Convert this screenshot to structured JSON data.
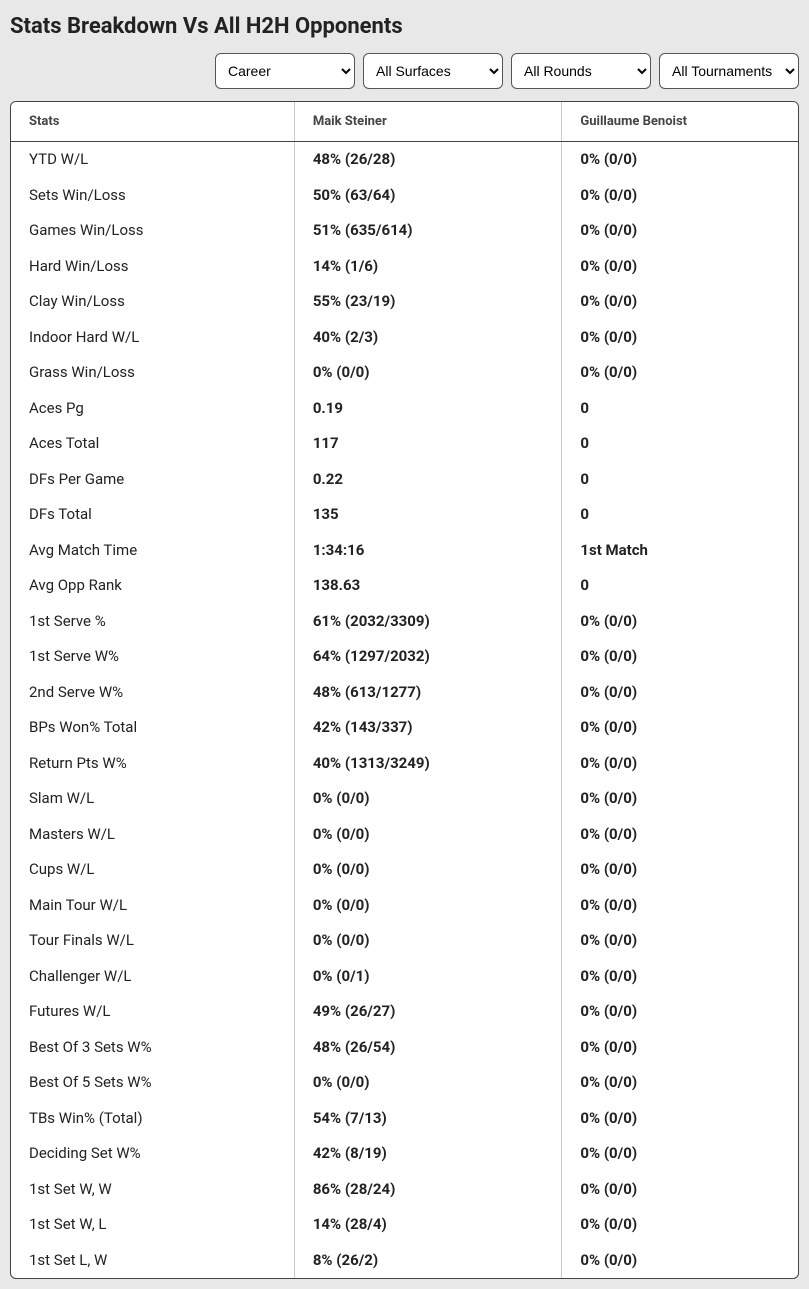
{
  "title": "Stats Breakdown Vs All H2H Opponents",
  "filters": {
    "period": {
      "selected": "Career",
      "options": [
        "Career"
      ]
    },
    "surface": {
      "selected": "All Surfaces",
      "options": [
        "All Surfaces"
      ]
    },
    "round": {
      "selected": "All Rounds",
      "options": [
        "All Rounds"
      ]
    },
    "tournament": {
      "selected": "All Tournaments",
      "options": [
        "All Tournaments"
      ]
    }
  },
  "columns": {
    "stats": "Stats",
    "player1": "Maik Steiner",
    "player2": "Guillaume Benoist"
  },
  "rows": [
    {
      "label": "YTD W/L",
      "p1": "48% (26/28)",
      "p2": "0% (0/0)"
    },
    {
      "label": "Sets Win/Loss",
      "p1": "50% (63/64)",
      "p2": "0% (0/0)"
    },
    {
      "label": "Games Win/Loss",
      "p1": "51% (635/614)",
      "p2": "0% (0/0)"
    },
    {
      "label": "Hard Win/Loss",
      "p1": "14% (1/6)",
      "p2": "0% (0/0)"
    },
    {
      "label": "Clay Win/Loss",
      "p1": "55% (23/19)",
      "p2": "0% (0/0)"
    },
    {
      "label": "Indoor Hard W/L",
      "p1": "40% (2/3)",
      "p2": "0% (0/0)"
    },
    {
      "label": "Grass Win/Loss",
      "p1": "0% (0/0)",
      "p2": "0% (0/0)"
    },
    {
      "label": "Aces Pg",
      "p1": "0.19",
      "p2": "0"
    },
    {
      "label": "Aces Total",
      "p1": "117",
      "p2": "0"
    },
    {
      "label": "DFs Per Game",
      "p1": "0.22",
      "p2": "0"
    },
    {
      "label": "DFs Total",
      "p1": "135",
      "p2": "0"
    },
    {
      "label": "Avg Match Time",
      "p1": "1:34:16",
      "p2": "1st Match"
    },
    {
      "label": "Avg Opp Rank",
      "p1": "138.63",
      "p2": "0"
    },
    {
      "label": "1st Serve %",
      "p1": "61% (2032/3309)",
      "p2": "0% (0/0)"
    },
    {
      "label": "1st Serve W%",
      "p1": "64% (1297/2032)",
      "p2": "0% (0/0)"
    },
    {
      "label": "2nd Serve W%",
      "p1": "48% (613/1277)",
      "p2": "0% (0/0)"
    },
    {
      "label": "BPs Won% Total",
      "p1": "42% (143/337)",
      "p2": "0% (0/0)"
    },
    {
      "label": "Return Pts W%",
      "p1": "40% (1313/3249)",
      "p2": "0% (0/0)"
    },
    {
      "label": "Slam W/L",
      "p1": "0% (0/0)",
      "p2": "0% (0/0)"
    },
    {
      "label": "Masters W/L",
      "p1": "0% (0/0)",
      "p2": "0% (0/0)"
    },
    {
      "label": "Cups W/L",
      "p1": "0% (0/0)",
      "p2": "0% (0/0)"
    },
    {
      "label": "Main Tour W/L",
      "p1": "0% (0/0)",
      "p2": "0% (0/0)"
    },
    {
      "label": "Tour Finals W/L",
      "p1": "0% (0/0)",
      "p2": "0% (0/0)"
    },
    {
      "label": "Challenger W/L",
      "p1": "0% (0/1)",
      "p2": "0% (0/0)"
    },
    {
      "label": "Futures W/L",
      "p1": "49% (26/27)",
      "p2": "0% (0/0)"
    },
    {
      "label": "Best Of 3 Sets W%",
      "p1": "48% (26/54)",
      "p2": "0% (0/0)"
    },
    {
      "label": "Best Of 5 Sets W%",
      "p1": "0% (0/0)",
      "p2": "0% (0/0)"
    },
    {
      "label": "TBs Win% (Total)",
      "p1": "54% (7/13)",
      "p2": "0% (0/0)"
    },
    {
      "label": "Deciding Set W%",
      "p1": "42% (8/19)",
      "p2": "0% (0/0)"
    },
    {
      "label": "1st Set W, W",
      "p1": "86% (28/24)",
      "p2": "0% (0/0)"
    },
    {
      "label": "1st Set W, L",
      "p1": "14% (28/4)",
      "p2": "0% (0/0)"
    },
    {
      "label": "1st Set L, W",
      "p1": "8% (26/2)",
      "p2": "0% (0/0)"
    }
  ],
  "style": {
    "background_color": "#e8e8e8",
    "table_background": "#ffffff",
    "border_color": "#444444",
    "col_divider_color": "#cccccc",
    "header_text_color": "#444444",
    "text_color": "#222222",
    "title_fontsize": 22,
    "header_fontsize": 13,
    "cell_fontsize": 15,
    "bold_value_weight": 700,
    "border_radius": 6,
    "col_widths_pct": [
      36,
      34,
      30
    ]
  }
}
